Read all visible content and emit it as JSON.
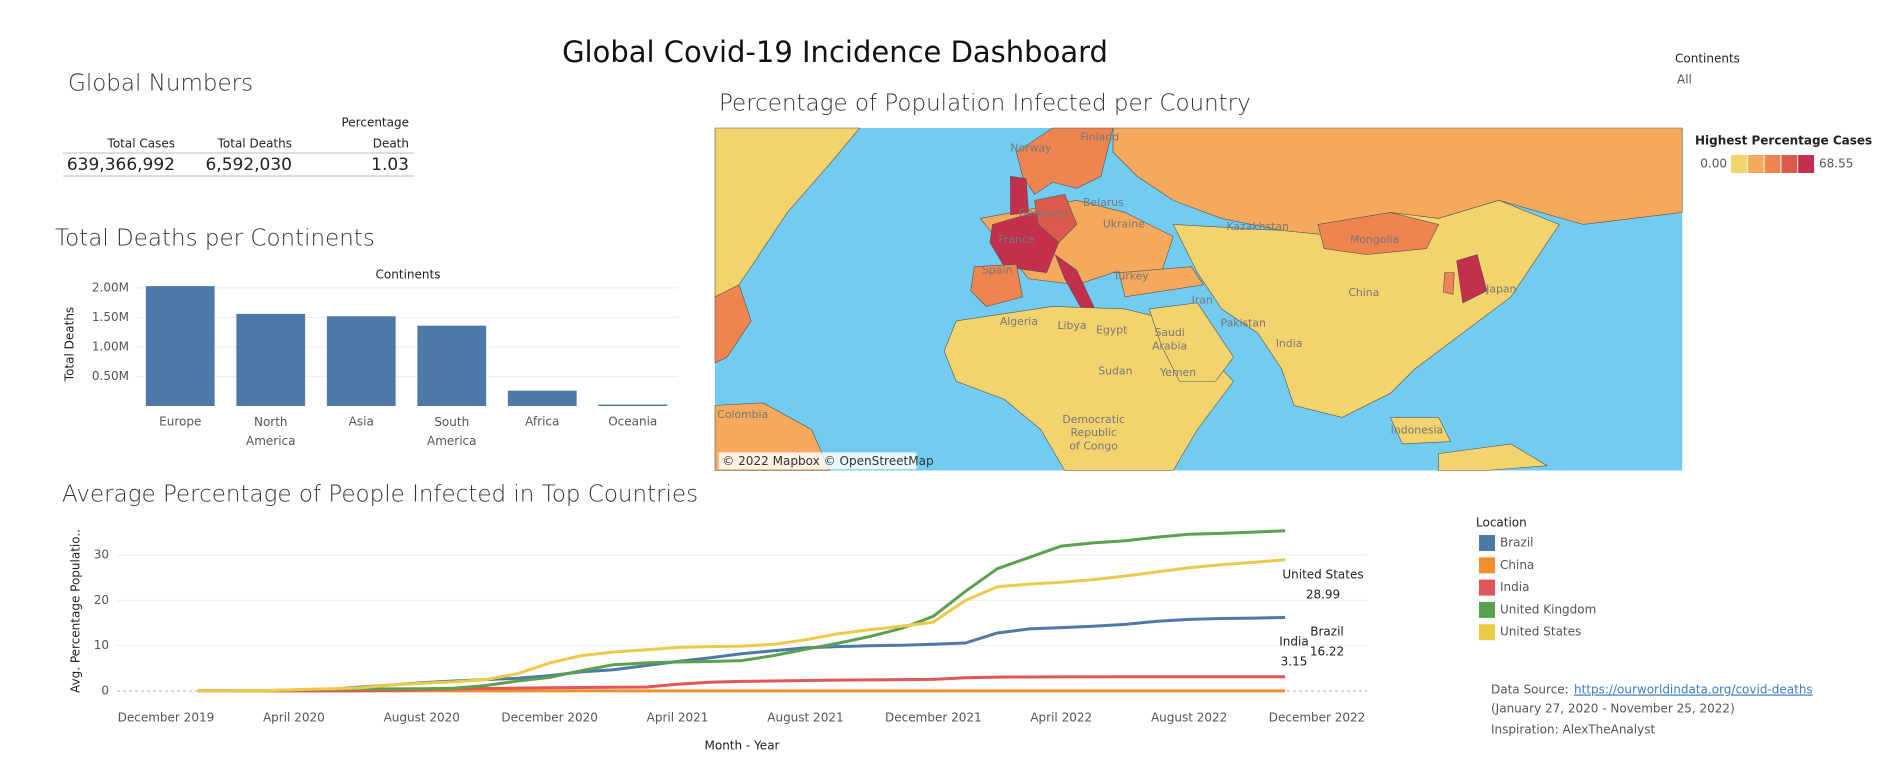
{
  "title": "Global Covid-19 Incidence Dashboard",
  "filter": {
    "label": "Continents",
    "value": "All"
  },
  "global_numbers": {
    "title": "Global Numbers",
    "columns": [
      [
        "Total Cases"
      ],
      [
        "Total Deaths"
      ],
      [
        "Percentage",
        "Death"
      ]
    ],
    "rows": [
      [
        "639,366,992",
        "6,592,030",
        "1.03"
      ]
    ]
  },
  "map": {
    "title": "Percentage of Population Infected per Country",
    "legend_title": "Highest Percentage Cases",
    "scale": [
      {
        "value": 0,
        "label": "0.00"
      },
      {
        "value": 68.55,
        "label": "68.55"
      }
    ],
    "colors": [
      "#f3d36e",
      "#f4a95d",
      "#ee8550",
      "#dc5a4c",
      "#c42f4c"
    ],
    "labels": [
      [
        "Norway"
      ],
      [
        "Finland"
      ],
      [
        "Belarus"
      ],
      [
        "Germany"
      ],
      [
        "Ukraine"
      ],
      [
        "France"
      ],
      [
        "Spain"
      ],
      [
        "Turkey"
      ],
      [
        "Kazakhstan"
      ],
      [
        "Mongolia"
      ],
      [
        "China"
      ],
      [
        "Japan"
      ],
      [
        "Iran"
      ],
      [
        "Pakistan"
      ],
      [
        "India"
      ],
      [
        "Algeria"
      ],
      [
        "Libya"
      ],
      [
        "Egypt"
      ],
      [
        "Saudi",
        "Arabia"
      ],
      [
        "Sudan"
      ],
      [
        "Yemen"
      ],
      [
        "Indonesia"
      ],
      [
        "Colombia"
      ],
      [
        "Democratic",
        "Republic",
        "of Congo"
      ]
    ],
    "attribution": "© 2022 Mapbox © OpenStreetMap"
  },
  "chart_data": [
    {
      "type": "bar",
      "title": "Total Deaths per Continents",
      "x_label": "Continents",
      "y_label": "Total Deaths",
      "categories": [
        "Europe",
        "North America",
        "Asia",
        "South America",
        "Africa",
        "Oceania"
      ],
      "values": [
        2030000,
        1560000,
        1520000,
        1360000,
        260000,
        25000
      ],
      "color": "#4e79a7",
      "ylim": [
        0,
        2100000
      ],
      "yticks": [
        {
          "value": 500000,
          "label": "0.50M"
        },
        {
          "value": 1000000,
          "label": "1.00M"
        },
        {
          "value": 1500000,
          "label": "1.50M"
        },
        {
          "value": 2000000,
          "label": "2.00M"
        }
      ],
      "grid": true
    },
    {
      "type": "line",
      "title": "Average Percentage of People Infected in Top Countries",
      "x_label": "Month - Year",
      "y_label": "Avg. Percentage Populatio..",
      "legend_title": "Location",
      "x": [
        "2020-01",
        "2020-02",
        "2020-03",
        "2020-04",
        "2020-05",
        "2020-06",
        "2020-07",
        "2020-08",
        "2020-09",
        "2020-10",
        "2020-11",
        "2020-12",
        "2021-01",
        "2021-02",
        "2021-03",
        "2021-04",
        "2021-05",
        "2021-06",
        "2021-07",
        "2021-08",
        "2021-09",
        "2021-10",
        "2021-11",
        "2021-12",
        "2022-01",
        "2022-02",
        "2022-03",
        "2022-04",
        "2022-05",
        "2022-06",
        "2022-07",
        "2022-08",
        "2022-09",
        "2022-10",
        "2022-11"
      ],
      "xlim": [
        "2019-10",
        "2023-01"
      ],
      "xticks": [
        {
          "value": "2019-12",
          "label": "December 2019"
        },
        {
          "value": "2020-04",
          "label": "April 2020"
        },
        {
          "value": "2020-08",
          "label": "August 2020"
        },
        {
          "value": "2020-12",
          "label": "December 2020"
        },
        {
          "value": "2021-04",
          "label": "April 2021"
        },
        {
          "value": "2021-08",
          "label": "August 2021"
        },
        {
          "value": "2021-12",
          "label": "December 2021"
        },
        {
          "value": "2022-04",
          "label": "April 2022"
        },
        {
          "value": "2022-08",
          "label": "August 2022"
        },
        {
          "value": "2022-12",
          "label": "December 2022"
        }
      ],
      "ylim": [
        -2,
        36
      ],
      "yticks": [
        0,
        10,
        20,
        30
      ],
      "grid": true,
      "series": [
        {
          "name": "Brazil",
          "color": "#4e79a7",
          "values": [
            0,
            0,
            0,
            0.05,
            0.3,
            0.8,
            1.3,
            1.8,
            2.2,
            2.5,
            2.8,
            3.4,
            4.2,
            4.7,
            5.6,
            6.5,
            7.3,
            8.2,
            8.9,
            9.5,
            9.8,
            10.0,
            10.1,
            10.3,
            10.6,
            12.8,
            13.7,
            14.0,
            14.3,
            14.7,
            15.4,
            15.8,
            16.0,
            16.1,
            16.22
          ]
        },
        {
          "name": "China",
          "color": "#f28e2b",
          "values": [
            0,
            0,
            0.01,
            0.01,
            0.01,
            0.01,
            0.01,
            0.01,
            0.01,
            0.01,
            0.01,
            0.01,
            0.01,
            0.01,
            0.01,
            0.01,
            0.01,
            0.01,
            0.01,
            0.01,
            0.01,
            0.01,
            0.01,
            0.01,
            0.01,
            0.01,
            0.01,
            0.01,
            0.01,
            0.02,
            0.02,
            0.02,
            0.02,
            0.02,
            0.02
          ]
        },
        {
          "name": "India",
          "color": "#e15759",
          "values": [
            0,
            0,
            0,
            0,
            0,
            0.05,
            0.1,
            0.25,
            0.45,
            0.55,
            0.62,
            0.7,
            0.77,
            0.8,
            0.85,
            1.5,
            1.9,
            2.1,
            2.2,
            2.3,
            2.4,
            2.45,
            2.5,
            2.55,
            2.9,
            3.05,
            3.08,
            3.1,
            3.1,
            3.12,
            3.13,
            3.14,
            3.15,
            3.15,
            3.15
          ]
        },
        {
          "name": "United Kingdom",
          "color": "#59a14f",
          "values": [
            0,
            0,
            0.05,
            0.2,
            0.4,
            0.45,
            0.45,
            0.5,
            0.6,
            1.2,
            2.2,
            3.0,
            4.5,
            5.8,
            6.2,
            6.4,
            6.5,
            6.7,
            7.8,
            9.2,
            10.5,
            12,
            13.8,
            16.5,
            22,
            27,
            29.5,
            32,
            32.7,
            33.2,
            34,
            34.6,
            34.8,
            35.1,
            35.4
          ]
        },
        {
          "name": "United States",
          "color": "#edc948",
          "values": [
            0,
            0,
            0.05,
            0.25,
            0.45,
            0.65,
            1.3,
            1.7,
            2.0,
            2.5,
            3.8,
            6.2,
            7.8,
            8.6,
            9.1,
            9.6,
            9.8,
            9.9,
            10.3,
            11.3,
            12.6,
            13.5,
            14.3,
            15.2,
            20,
            23,
            23.6,
            24,
            24.6,
            25.4,
            26.3,
            27.2,
            27.9,
            28.4,
            28.99
          ]
        }
      ]
    }
  ],
  "source": {
    "prefix": "Data Source: ",
    "link": "https://ourworldindata.org/covid-deaths",
    "range": "(January 27, 2020 - November 25, 2022)",
    "inspiration": "Inspiration: AlexTheAnalyst"
  }
}
